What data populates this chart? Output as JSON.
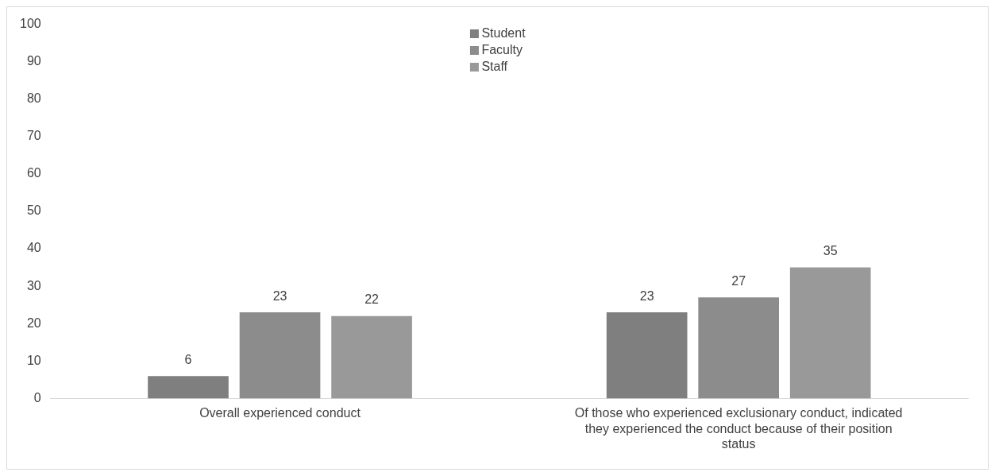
{
  "chart_data": {
    "type": "bar",
    "categories": [
      "Overall experienced conduct",
      "Of those who experienced exclusionary conduct, indicated they experienced the conduct because of their position status"
    ],
    "series": [
      {
        "name": "Student",
        "color": "#7f7f7f",
        "values": [
          6,
          23
        ]
      },
      {
        "name": "Faculty",
        "color": "#8c8c8c",
        "values": [
          23,
          27
        ]
      },
      {
        "name": "Staff",
        "color": "#999999",
        "values": [
          22,
          35
        ]
      }
    ],
    "ylim": [
      0,
      100
    ],
    "yticks": [
      0,
      10,
      20,
      30,
      40,
      50,
      60,
      70,
      80,
      90,
      100
    ],
    "grid": false,
    "legend": "top",
    "data_labels": true
  }
}
